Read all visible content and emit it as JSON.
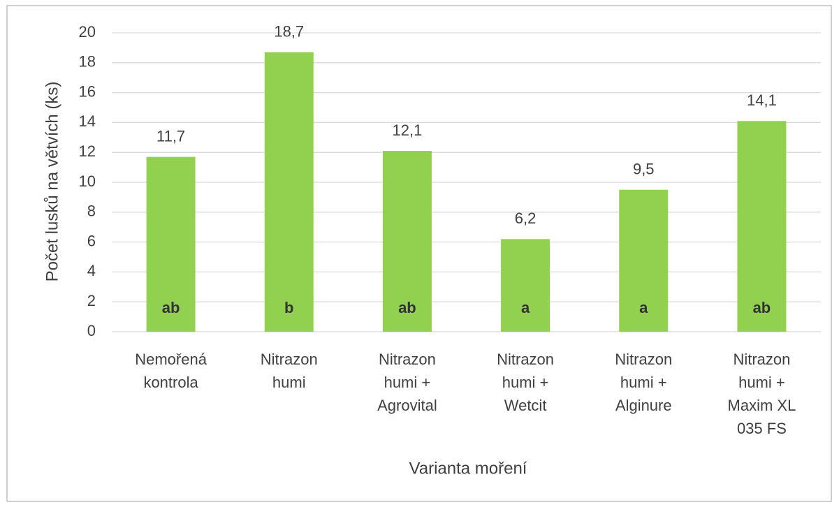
{
  "chart_data": {
    "type": "bar",
    "x_label": "Varianta moření",
    "y_label": "Počet lusků na větvích (ks)",
    "categories": [
      [
        "Nemořená",
        "kontrola"
      ],
      [
        "Nitrazon",
        "humi"
      ],
      [
        "Nitrazon",
        "humi +",
        "Agrovital"
      ],
      [
        "Nitrazon",
        "humi +",
        "Wetcit"
      ],
      [
        "Nitrazon",
        "humi +",
        "Alginure"
      ],
      [
        "Nitrazon",
        "humi +",
        "Maxim XL",
        "035 FS"
      ]
    ],
    "values": [
      11.7,
      18.7,
      12.1,
      6.2,
      9.5,
      14.1
    ],
    "value_labels": [
      "11,7",
      "18,7",
      "12,1",
      "6,2",
      "9,5",
      "14,1"
    ],
    "annotations": [
      "ab",
      "b",
      "ab",
      "a",
      "a",
      "ab"
    ],
    "color": "#92d050",
    "ylim": [
      0,
      20
    ],
    "yticks": [
      0,
      2,
      4,
      6,
      8,
      10,
      12,
      14,
      16,
      18,
      20
    ],
    "grid": true
  }
}
